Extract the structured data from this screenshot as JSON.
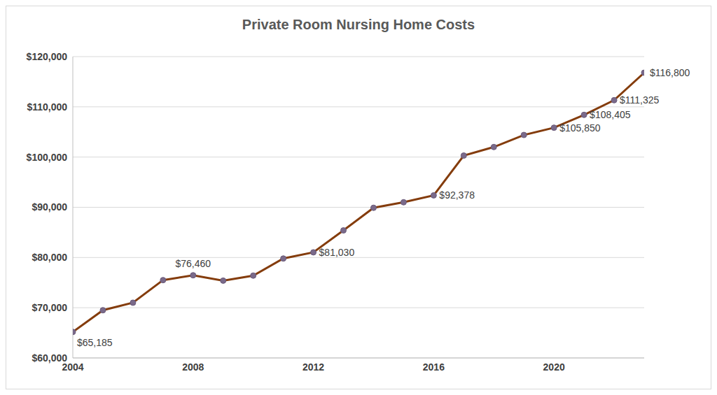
{
  "chart_data": {
    "type": "line",
    "title": "Private Room Nursing Home Costs",
    "x": [
      2004,
      2005,
      2006,
      2007,
      2008,
      2009,
      2010,
      2011,
      2012,
      2013,
      2014,
      2015,
      2016,
      2017,
      2018,
      2019,
      2020,
      2021,
      2022,
      2023
    ],
    "values": [
      65185,
      69500,
      71000,
      75500,
      76460,
      75400,
      76400,
      79800,
      81030,
      85400,
      89900,
      91000,
      92378,
      100300,
      102000,
      104400,
      105850,
      108405,
      111325,
      116800
    ],
    "value_labels": [
      "$65,185",
      null,
      null,
      null,
      "$76,460",
      null,
      null,
      null,
      "$81,030",
      null,
      null,
      null,
      "$92,378",
      null,
      null,
      null,
      "$105,850",
      "$108,405",
      "$111,325",
      "$116,800"
    ],
    "color": "#843c0c",
    "marker": "circle",
    "line_style": "solid",
    "xlim": [
      2004,
      2023
    ],
    "xticks": [
      2004,
      2008,
      2012,
      2016,
      2020
    ],
    "ylim": [
      60000,
      120000
    ],
    "yticks": [
      {
        "value": 60000,
        "label": "$60,000"
      },
      {
        "value": 70000,
        "label": "$70,000"
      },
      {
        "value": 80000,
        "label": "$80,000"
      },
      {
        "value": 90000,
        "label": "$90,000"
      },
      {
        "value": 100000,
        "label": "$100,000"
      },
      {
        "value": 110000,
        "label": "$110,000"
      },
      {
        "value": 120000,
        "label": "$120,000"
      }
    ],
    "grid": true
  }
}
